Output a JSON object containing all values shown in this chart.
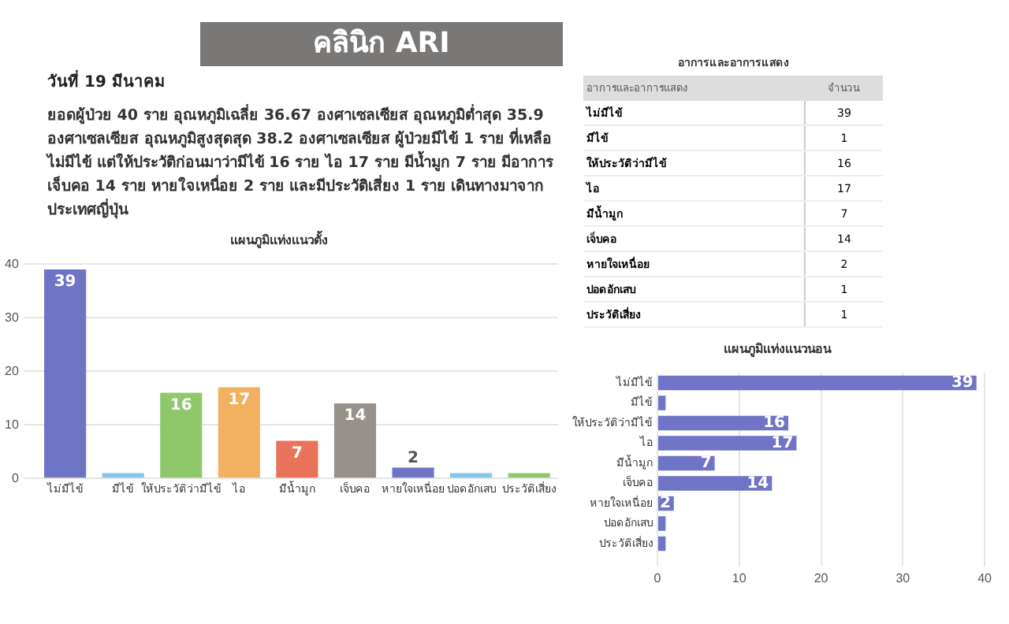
{
  "chart_data": [
    {
      "type": "other",
      "title": "คลินิก ARI",
      "subtitle": "วันที่ 19 มีนาคม",
      "annotations": [
        "ยอดผู้ป่วย 40 ราย อุณหภูมิเฉลี่ย 36.67 องศาเซลเซียส อุณหภูมิต่ำสุด 35.9 องศาเซลเซียส อุณหภูมิสูงสุดสุด 38.2 องศาเซลเซียส ผู้ป่วยมีไข้ 1 ราย ที่เหลือ ไม่มีไข้ แต่ให้ประวัติก่อนมาว่ามีไข้ 16 ราย ไอ 17 ราย มีน้ำมูก 7 ราย มีอาการ เจ็บคอ 14 ราย หายใจเหนื่อย 2 ราย และมีประวัติเสี่ยง 1 ราย เดินทางมาจาก ประเทศญี่ปุ่น"
      ]
    },
    {
      "type": "bar",
      "title": "แผนภูมิแท่งแนวตั้ง",
      "categories": [
        "ไม่มีไข้",
        "มีไข้",
        "ให้ประวัติว่ามีไข้",
        "ไอ",
        "มีน้ำมูก",
        "เจ็บคอ",
        "หายใจเหนื่อย",
        "ปอดอักเสบ",
        "ประวัติเสี่ยง"
      ],
      "values": [
        39,
        1,
        16,
        17,
        7,
        14,
        2,
        1,
        1
      ],
      "colors": [
        "#6f74c6",
        "#85c6ea",
        "#8fc86a",
        "#f2b061",
        "#e8735a",
        "#97918b",
        "#6f74c6",
        "#85c6ea",
        "#8fc86a"
      ],
      "value_labels": [
        "39",
        null,
        "16",
        "17",
        "7",
        "14",
        "2",
        null,
        null
      ],
      "ylim": [
        0,
        40
      ],
      "yticks": [
        0,
        10,
        20,
        30,
        40
      ],
      "grid": "y",
      "legend": false
    },
    {
      "type": "other",
      "title": "อาการและอาการแสดง",
      "annotations": [
        "อาการและอาการแสดง",
        "จำนวน"
      ],
      "data_labels": true,
      "categories": [
        "ไม่มีไข้",
        "มีไข้",
        "ให้ประวัติว่ามีไข้",
        "ไอ",
        "มีน้ำมูก",
        "เจ็บคอ",
        "หายใจเหนื่อย",
        "ปอดอักเสบ",
        "ประวัติเสี่ยง"
      ],
      "values": [
        39,
        1,
        16,
        17,
        7,
        14,
        2,
        1,
        1
      ]
    },
    {
      "type": "bar",
      "orientation": "horizontal",
      "title": "แผนภูมิแท่งแนวนอน",
      "categories": [
        "ไม่มีไข้",
        "มีไข้",
        "ให้ประวัติว่ามีไข้",
        "ไอ",
        "มีน้ำมูก",
        "เจ็บคอ",
        "หายใจเหนื่อย",
        "ปอดอักเสบ",
        "ประวัติเสี่ยง"
      ],
      "values": [
        39,
        1,
        16,
        17,
        7,
        14,
        2,
        1,
        1
      ],
      "color": "#6f74c6",
      "value_labels": [
        "39",
        null,
        "16",
        "17",
        "7",
        "14",
        "2",
        null,
        null
      ],
      "xlim": [
        0,
        40
      ],
      "xticks": [
        0,
        10,
        20,
        30,
        40
      ],
      "grid": "x",
      "legend": false
    }
  ]
}
